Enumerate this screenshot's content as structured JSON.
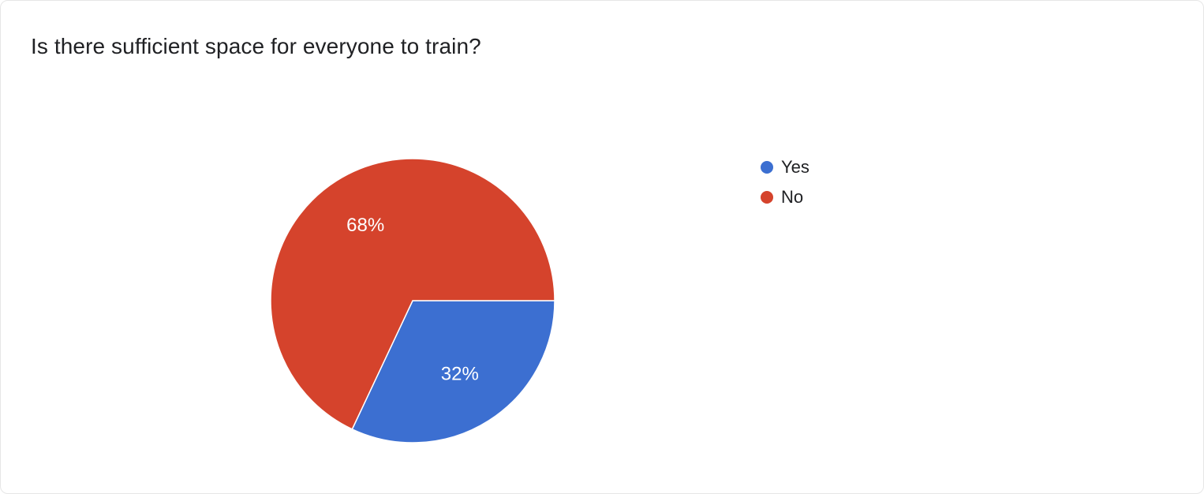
{
  "page": {
    "background_color": "#ffffff",
    "border_color": "#e6e6e6"
  },
  "title": "Is there sufficient space for everyone to train?",
  "chart_data": {
    "type": "pie",
    "title": "Is there sufficient space for everyone to train?",
    "slices": [
      {
        "label": "Yes",
        "value": 32,
        "display": "32%",
        "color": "#3c6fd1"
      },
      {
        "label": "No",
        "value": 68,
        "display": "68%",
        "color": "#d5432c"
      }
    ],
    "start_angle_deg": 0,
    "direction": "clockwise",
    "legend_position": "right",
    "slice_label_color": "#ffffff",
    "title_color": "#202124"
  },
  "legend": {
    "items": [
      {
        "label": "Yes",
        "color": "#3c6fd1"
      },
      {
        "label": "No",
        "color": "#d5432c"
      }
    ]
  }
}
